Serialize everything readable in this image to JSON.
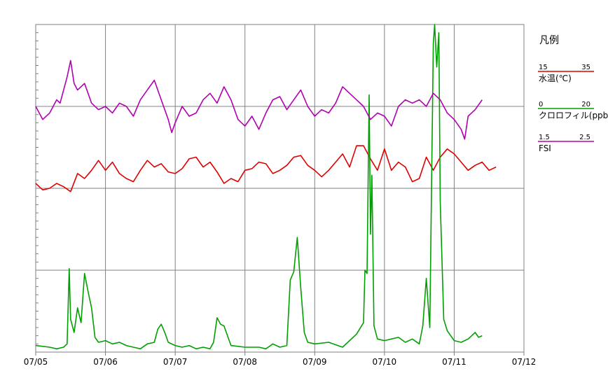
{
  "chart_data": {
    "type": "line",
    "x_range": [
      "07/05",
      "07/12"
    ],
    "x_ticks": [
      "07/05",
      "07/06",
      "07/07",
      "07/08",
      "07/09",
      "07/10",
      "07/11",
      "07/12"
    ],
    "grid": true,
    "y_gridlines": 4,
    "legend": {
      "title": "凡例",
      "position": "right"
    },
    "series": [
      {
        "name": "水温(℃)",
        "color": "#e00000",
        "range": [
          15,
          35
        ],
        "range_labels": [
          "15",
          "35"
        ],
        "points": [
          [
            0.0,
            25.3
          ],
          [
            0.1,
            24.9
          ],
          [
            0.2,
            25.0
          ],
          [
            0.3,
            25.3
          ],
          [
            0.4,
            25.1
          ],
          [
            0.5,
            24.8
          ],
          [
            0.6,
            25.9
          ],
          [
            0.7,
            25.6
          ],
          [
            0.8,
            26.1
          ],
          [
            0.9,
            26.7
          ],
          [
            1.0,
            26.1
          ],
          [
            1.1,
            26.6
          ],
          [
            1.2,
            25.9
          ],
          [
            1.3,
            25.6
          ],
          [
            1.4,
            25.4
          ],
          [
            1.5,
            26.1
          ],
          [
            1.6,
            26.7
          ],
          [
            1.7,
            26.3
          ],
          [
            1.8,
            26.5
          ],
          [
            1.9,
            26.0
          ],
          [
            2.0,
            25.9
          ],
          [
            2.1,
            26.2
          ],
          [
            2.2,
            26.8
          ],
          [
            2.3,
            26.9
          ],
          [
            2.4,
            26.3
          ],
          [
            2.5,
            26.6
          ],
          [
            2.6,
            26.0
          ],
          [
            2.7,
            25.3
          ],
          [
            2.8,
            25.6
          ],
          [
            2.9,
            25.4
          ],
          [
            3.0,
            26.1
          ],
          [
            3.1,
            26.2
          ],
          [
            3.2,
            26.6
          ],
          [
            3.3,
            26.5
          ],
          [
            3.4,
            25.9
          ],
          [
            3.5,
            26.1
          ],
          [
            3.6,
            26.4
          ],
          [
            3.7,
            26.9
          ],
          [
            3.8,
            27.0
          ],
          [
            3.9,
            26.4
          ],
          [
            4.0,
            26.1
          ],
          [
            4.1,
            25.7
          ],
          [
            4.2,
            26.1
          ],
          [
            4.3,
            26.6
          ],
          [
            4.4,
            27.1
          ],
          [
            4.5,
            26.3
          ],
          [
            4.6,
            27.6
          ],
          [
            4.7,
            27.6
          ],
          [
            4.8,
            26.8
          ],
          [
            4.9,
            26.1
          ],
          [
            5.0,
            27.4
          ],
          [
            5.1,
            26.1
          ],
          [
            5.2,
            26.6
          ],
          [
            5.3,
            26.3
          ],
          [
            5.4,
            25.4
          ],
          [
            5.5,
            25.6
          ],
          [
            5.6,
            26.9
          ],
          [
            5.7,
            26.1
          ],
          [
            5.8,
            26.9
          ],
          [
            5.9,
            27.4
          ],
          [
            6.0,
            27.1
          ],
          [
            6.1,
            26.6
          ],
          [
            6.2,
            26.1
          ],
          [
            6.3,
            26.4
          ],
          [
            6.4,
            26.6
          ],
          [
            6.5,
            26.1
          ],
          [
            6.6,
            26.3
          ]
        ]
      },
      {
        "name": "クロロフィル(ppb)",
        "color": "#00a000",
        "range": [
          0,
          20
        ],
        "range_labels": [
          "0",
          "20"
        ],
        "points": [
          [
            0.0,
            0.4
          ],
          [
            0.2,
            0.3
          ],
          [
            0.3,
            0.2
          ],
          [
            0.4,
            0.3
          ],
          [
            0.45,
            0.5
          ],
          [
            0.48,
            5.1
          ],
          [
            0.5,
            2.0
          ],
          [
            0.55,
            1.2
          ],
          [
            0.6,
            2.7
          ],
          [
            0.65,
            1.8
          ],
          [
            0.7,
            4.8
          ],
          [
            0.75,
            3.7
          ],
          [
            0.8,
            2.7
          ],
          [
            0.85,
            0.9
          ],
          [
            0.9,
            0.6
          ],
          [
            1.0,
            0.7
          ],
          [
            1.1,
            0.5
          ],
          [
            1.2,
            0.6
          ],
          [
            1.3,
            0.4
          ],
          [
            1.4,
            0.3
          ],
          [
            1.5,
            0.2
          ],
          [
            1.6,
            0.5
          ],
          [
            1.7,
            0.6
          ],
          [
            1.75,
            1.4
          ],
          [
            1.8,
            1.7
          ],
          [
            1.85,
            1.2
          ],
          [
            1.9,
            0.6
          ],
          [
            2.0,
            0.4
          ],
          [
            2.1,
            0.3
          ],
          [
            2.2,
            0.4
          ],
          [
            2.3,
            0.2
          ],
          [
            2.4,
            0.3
          ],
          [
            2.5,
            0.2
          ],
          [
            2.55,
            0.6
          ],
          [
            2.6,
            2.1
          ],
          [
            2.65,
            1.7
          ],
          [
            2.7,
            1.6
          ],
          [
            2.75,
            1.0
          ],
          [
            2.8,
            0.4
          ],
          [
            3.0,
            0.3
          ],
          [
            3.2,
            0.3
          ],
          [
            3.3,
            0.2
          ],
          [
            3.4,
            0.5
          ],
          [
            3.5,
            0.3
          ],
          [
            3.6,
            0.4
          ],
          [
            3.65,
            4.4
          ],
          [
            3.7,
            4.9
          ],
          [
            3.75,
            7.0
          ],
          [
            3.8,
            3.9
          ],
          [
            3.85,
            1.2
          ],
          [
            3.9,
            0.6
          ],
          [
            4.0,
            0.5
          ],
          [
            4.2,
            0.6
          ],
          [
            4.4,
            0.3
          ],
          [
            4.6,
            1.1
          ],
          [
            4.7,
            1.8
          ],
          [
            4.72,
            5.0
          ],
          [
            4.75,
            4.8
          ],
          [
            4.78,
            15.7
          ],
          [
            4.8,
            7.2
          ],
          [
            4.82,
            10.8
          ],
          [
            4.85,
            1.6
          ],
          [
            4.9,
            0.8
          ],
          [
            5.0,
            0.7
          ],
          [
            5.2,
            0.9
          ],
          [
            5.3,
            0.6
          ],
          [
            5.4,
            0.8
          ],
          [
            5.5,
            0.5
          ],
          [
            5.55,
            1.6
          ],
          [
            5.6,
            4.5
          ],
          [
            5.65,
            1.5
          ],
          [
            5.7,
            18.8
          ],
          [
            5.72,
            20.0
          ],
          [
            5.75,
            17.4
          ],
          [
            5.78,
            19.5
          ],
          [
            5.8,
            9.2
          ],
          [
            5.85,
            2.0
          ],
          [
            5.9,
            1.3
          ],
          [
            6.0,
            0.7
          ],
          [
            6.1,
            0.6
          ],
          [
            6.2,
            0.8
          ],
          [
            6.3,
            1.2
          ],
          [
            6.35,
            0.9
          ],
          [
            6.4,
            1.0
          ]
        ]
      },
      {
        "name": "FSI",
        "color": "#b000b0",
        "range": [
          1.5,
          2.5
        ],
        "range_labels": [
          "1.5",
          "2.5"
        ],
        "points": [
          [
            0.0,
            2.25
          ],
          [
            0.1,
            2.21
          ],
          [
            0.2,
            2.23
          ],
          [
            0.3,
            2.27
          ],
          [
            0.35,
            2.26
          ],
          [
            0.45,
            2.34
          ],
          [
            0.5,
            2.39
          ],
          [
            0.55,
            2.32
          ],
          [
            0.6,
            2.3
          ],
          [
            0.7,
            2.32
          ],
          [
            0.8,
            2.26
          ],
          [
            0.9,
            2.24
          ],
          [
            1.0,
            2.25
          ],
          [
            1.1,
            2.23
          ],
          [
            1.2,
            2.26
          ],
          [
            1.3,
            2.25
          ],
          [
            1.4,
            2.22
          ],
          [
            1.5,
            2.27
          ],
          [
            1.6,
            2.3
          ],
          [
            1.7,
            2.33
          ],
          [
            1.8,
            2.27
          ],
          [
            1.9,
            2.21
          ],
          [
            1.95,
            2.17
          ],
          [
            2.0,
            2.2
          ],
          [
            2.1,
            2.25
          ],
          [
            2.2,
            2.22
          ],
          [
            2.3,
            2.23
          ],
          [
            2.4,
            2.27
          ],
          [
            2.5,
            2.29
          ],
          [
            2.6,
            2.26
          ],
          [
            2.7,
            2.31
          ],
          [
            2.8,
            2.27
          ],
          [
            2.9,
            2.21
          ],
          [
            3.0,
            2.19
          ],
          [
            3.1,
            2.22
          ],
          [
            3.2,
            2.18
          ],
          [
            3.3,
            2.23
          ],
          [
            3.4,
            2.27
          ],
          [
            3.5,
            2.28
          ],
          [
            3.6,
            2.24
          ],
          [
            3.7,
            2.27
          ],
          [
            3.8,
            2.3
          ],
          [
            3.9,
            2.25
          ],
          [
            4.0,
            2.22
          ],
          [
            4.1,
            2.24
          ],
          [
            4.2,
            2.23
          ],
          [
            4.3,
            2.26
          ],
          [
            4.4,
            2.31
          ],
          [
            4.5,
            2.29
          ],
          [
            4.6,
            2.27
          ],
          [
            4.7,
            2.25
          ],
          [
            4.8,
            2.21
          ],
          [
            4.9,
            2.23
          ],
          [
            5.0,
            2.22
          ],
          [
            5.1,
            2.19
          ],
          [
            5.2,
            2.25
          ],
          [
            5.3,
            2.27
          ],
          [
            5.4,
            2.26
          ],
          [
            5.5,
            2.27
          ],
          [
            5.6,
            2.25
          ],
          [
            5.7,
            2.29
          ],
          [
            5.8,
            2.27
          ],
          [
            5.9,
            2.23
          ],
          [
            6.0,
            2.21
          ],
          [
            6.1,
            2.18
          ],
          [
            6.15,
            2.15
          ],
          [
            6.2,
            2.22
          ],
          [
            6.3,
            2.24
          ],
          [
            6.4,
            2.27
          ]
        ]
      }
    ]
  }
}
